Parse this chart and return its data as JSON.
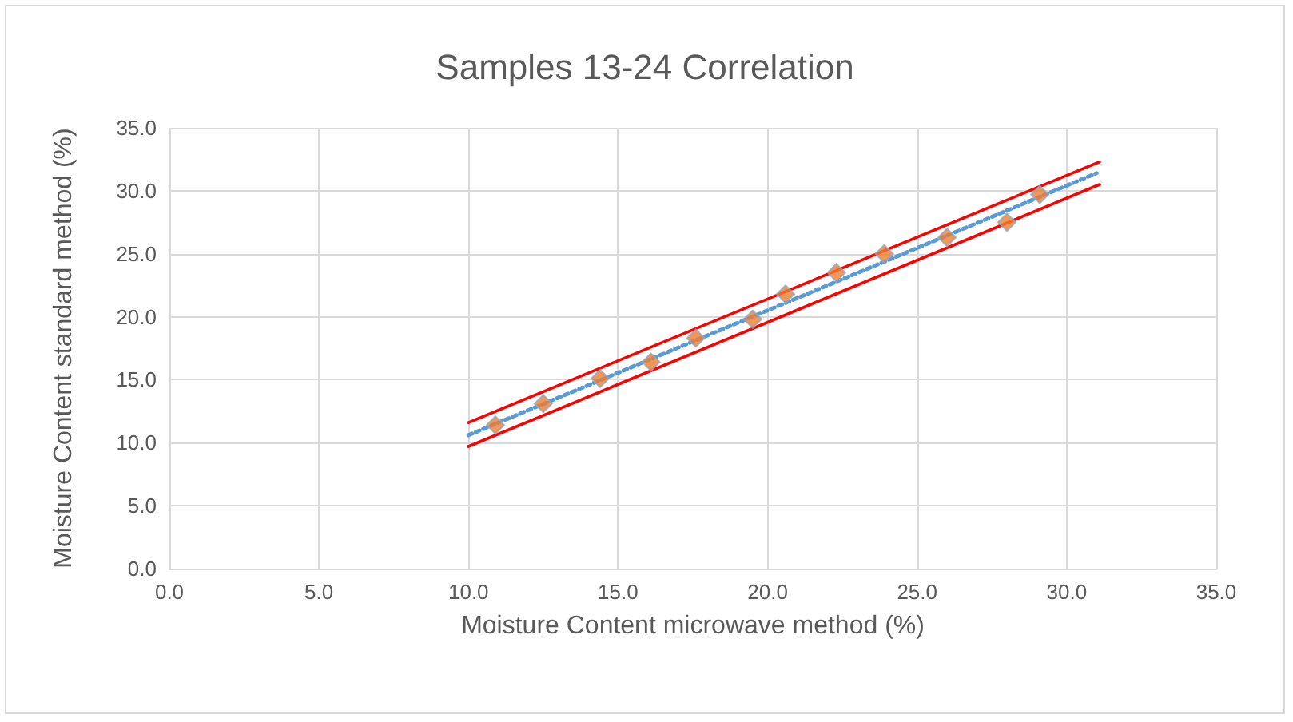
{
  "chart_data": {
    "type": "scatter",
    "title": "Samples 13-24 Correlation",
    "xlabel": "Moisture Content microwave method (%)",
    "ylabel": "Moisture Content standard method (%)",
    "xlim": [
      0,
      35
    ],
    "xticks": [
      {
        "value": 0,
        "label": "0.0"
      },
      {
        "value": 5,
        "label": "5.0"
      },
      {
        "value": 10,
        "label": "10.0"
      },
      {
        "value": 15,
        "label": "15.0"
      },
      {
        "value": 20,
        "label": "20.0"
      },
      {
        "value": 25,
        "label": "25.0"
      },
      {
        "value": 30,
        "label": "30.0"
      },
      {
        "value": 35,
        "label": "35.0"
      }
    ],
    "ylim": [
      0,
      35
    ],
    "yticks": [
      {
        "value": 0,
        "label": "0.0"
      },
      {
        "value": 5,
        "label": "5.0"
      },
      {
        "value": 10,
        "label": "10.0"
      },
      {
        "value": 15,
        "label": "15.0"
      },
      {
        "value": 20,
        "label": "20.0"
      },
      {
        "value": 25,
        "label": "25.0"
      },
      {
        "value": 30,
        "label": "30.0"
      },
      {
        "value": 35,
        "label": "35.0"
      }
    ],
    "grid": true,
    "marker": "diamond",
    "series": [
      {
        "type": "line",
        "color": "#ff0000",
        "line_style": "solid",
        "marker": "none",
        "x": [
          10,
          31.1
        ],
        "values": [
          11.6,
          32.3
        ]
      },
      {
        "type": "line",
        "color": "#ff0000",
        "line_style": "solid",
        "marker": "none",
        "x": [
          10,
          31.1
        ],
        "values": [
          9.7,
          30.5
        ]
      },
      {
        "type": "line",
        "color": "#5b9bd5",
        "line_style": "dotted",
        "marker": "none",
        "x": [
          10,
          31
        ],
        "values": [
          10.6,
          31.4
        ]
      },
      {
        "color": "#ed7d31",
        "x": [
          10.9,
          12.5,
          14.4,
          16.1,
          17.6,
          19.5,
          20.6,
          22.3,
          23.9,
          26.0,
          28.0,
          29.1
        ],
        "values": [
          11.4,
          13.1,
          15.1,
          16.4,
          18.3,
          19.8,
          21.8,
          23.5,
          25.0,
          26.3,
          27.5,
          29.7
        ]
      }
    ]
  }
}
